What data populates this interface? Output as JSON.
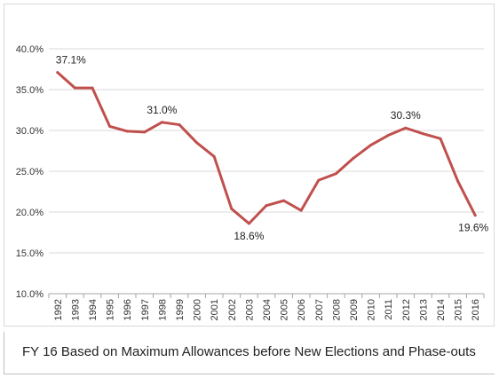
{
  "chart_data": {
    "type": "line",
    "title": "",
    "xlabel": "",
    "ylabel": "",
    "categories": [
      "1992",
      "1993",
      "1994",
      "1995",
      "1996",
      "1997",
      "1998",
      "1999",
      "2000",
      "2001",
      "2002",
      "2003",
      "2004",
      "2005",
      "2006",
      "2007",
      "2008",
      "2009",
      "2010",
      "2011",
      "2012",
      "2013",
      "2014",
      "2015",
      "2016"
    ],
    "series": [
      {
        "values": [
          37.1,
          35.2,
          35.2,
          30.5,
          29.9,
          29.8,
          31.0,
          30.7,
          28.5,
          26.8,
          20.4,
          18.6,
          20.8,
          21.4,
          20.2,
          23.9,
          24.7,
          26.6,
          28.2,
          29.4,
          30.3,
          29.6,
          29.0,
          23.8,
          19.6
        ],
        "color": "#c0504d"
      }
    ],
    "y_ticks": [
      "10.0%",
      "15.0%",
      "20.0%",
      "25.0%",
      "30.0%",
      "35.0%",
      "40.0%"
    ],
    "ylim": [
      10,
      40
    ],
    "grid": true,
    "data_labels": [
      {
        "index": 0,
        "text": "37.1%"
      },
      {
        "index": 6,
        "text": "31.0%"
      },
      {
        "index": 11,
        "text": "18.6%"
      },
      {
        "index": 20,
        "text": "30.3%"
      },
      {
        "index": 24,
        "text": "19.6%"
      }
    ]
  },
  "caption": "FY 16 Based on Maximum Allowances before New Elections and Phase-outs"
}
